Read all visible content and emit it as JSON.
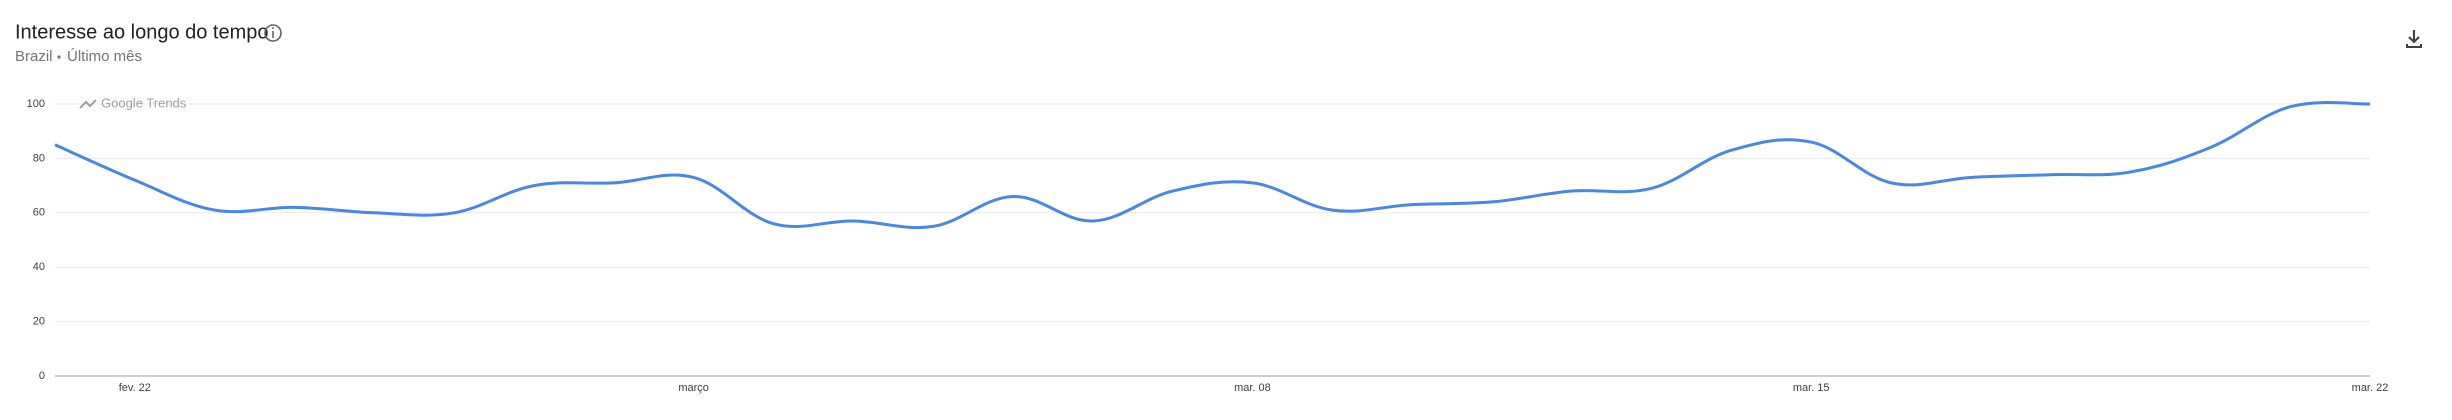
{
  "chart_data": {
    "type": "line",
    "title": "Interesse ao longo do tempo",
    "subtitle_region": "Brazil",
    "subtitle_period": "Último mês",
    "watermark": "Google Trends",
    "categories": [
      null,
      "fev. 22",
      null,
      null,
      null,
      null,
      null,
      null,
      "março",
      null,
      null,
      null,
      null,
      null,
      null,
      "mar. 08",
      null,
      null,
      null,
      null,
      null,
      null,
      "mar. 15",
      null,
      null,
      null,
      null,
      null,
      null,
      "mar. 22"
    ],
    "series": [
      {
        "color": "#4a86e8",
        "values": [
          85,
          72,
          61,
          62,
          60,
          60,
          70,
          71,
          73,
          56,
          57,
          55,
          66,
          57,
          68,
          71,
          61,
          63,
          64,
          68,
          69,
          83,
          86,
          71,
          73,
          74,
          75,
          84,
          99,
          100
        ]
      }
    ],
    "ylim": [
      0,
      100
    ],
    "yticks": [
      0,
      20,
      40,
      60,
      80,
      100
    ],
    "grid": true
  }
}
